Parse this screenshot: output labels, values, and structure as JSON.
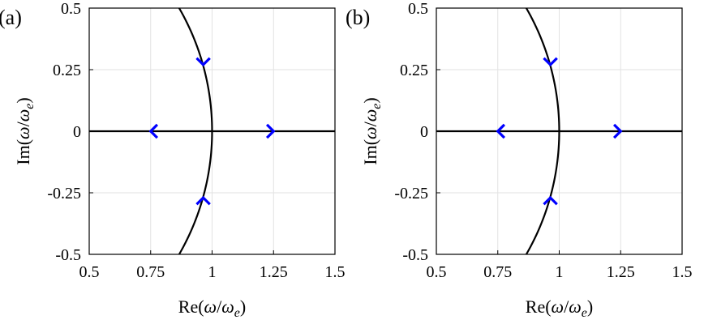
{
  "chart_data": [
    {
      "type": "line",
      "panel_label": "(a)",
      "xlabel": "Re(ω/ω_e)",
      "ylabel": "Im(ω/ω_e)",
      "xlim": [
        0.5,
        1.5
      ],
      "ylim": [
        -0.5,
        0.5
      ],
      "x_ticks": [
        0.5,
        0.75,
        1,
        1.25,
        1.5
      ],
      "x_tick_labels": [
        "0.5",
        "0.75",
        "1",
        "1.25",
        "1.5"
      ],
      "y_ticks": [
        -0.5,
        -0.25,
        0,
        0.25,
        0.5
      ],
      "y_tick_labels": [
        "-0.5",
        "-0.25",
        "0",
        "0.25",
        "0.5"
      ],
      "grid": true,
      "series": [
        {
          "type": "line",
          "color": "#000000",
          "x": [
            0.5,
            1.5
          ],
          "y": [
            0,
            0
          ]
        },
        {
          "type": "line",
          "color": "#000000",
          "x": [
            0.866,
            0.914,
            0.954,
            0.98,
            0.995,
            1.0,
            0.995,
            0.98,
            0.954,
            0.914,
            0.866
          ],
          "y": [
            0.5,
            0.406,
            0.301,
            0.199,
            0.1,
            0,
            -0.1,
            -0.199,
            -0.301,
            -0.406,
            -0.5
          ]
        }
      ],
      "arrows": [
        {
          "x": 0.75,
          "y": 0,
          "direction": "left",
          "color": "#0000ff"
        },
        {
          "x": 1.25,
          "y": 0,
          "direction": "right",
          "color": "#0000ff"
        },
        {
          "x": 0.964,
          "y": 0.27,
          "direction": "down",
          "color": "#0000ff"
        },
        {
          "x": 0.964,
          "y": -0.27,
          "direction": "up",
          "color": "#0000ff"
        }
      ]
    },
    {
      "type": "line",
      "panel_label": "(b)",
      "xlabel": "Re(ω/ω_e)",
      "ylabel": "Im(ω/ω_e)",
      "xlim": [
        0.5,
        1.5
      ],
      "ylim": [
        -0.5,
        0.5
      ],
      "x_ticks": [
        0.5,
        0.75,
        1,
        1.25,
        1.5
      ],
      "x_tick_labels": [
        "0.5",
        "0.75",
        "1",
        "1.25",
        "1.5"
      ],
      "y_ticks": [
        -0.5,
        -0.25,
        0,
        0.25,
        0.5
      ],
      "y_tick_labels": [
        "-0.5",
        "-0.25",
        "0",
        "0.25",
        "0.5"
      ],
      "grid": true,
      "series": [
        {
          "type": "line",
          "color": "#000000",
          "x": [
            0.5,
            1.5
          ],
          "y": [
            0,
            0
          ]
        },
        {
          "type": "line",
          "color": "#000000",
          "x": [
            0.866,
            0.914,
            0.954,
            0.98,
            0.995,
            1.0,
            0.995,
            0.98,
            0.954,
            0.914,
            0.866
          ],
          "y": [
            0.5,
            0.406,
            0.301,
            0.199,
            0.1,
            0,
            -0.1,
            -0.199,
            -0.301,
            -0.406,
            -0.5
          ]
        }
      ],
      "arrows": [
        {
          "x": 0.75,
          "y": 0,
          "direction": "left",
          "color": "#0000ff"
        },
        {
          "x": 1.25,
          "y": 0,
          "direction": "right",
          "color": "#0000ff"
        },
        {
          "x": 0.964,
          "y": 0.27,
          "direction": "down",
          "color": "#0000ff"
        },
        {
          "x": 0.964,
          "y": -0.27,
          "direction": "up",
          "color": "#0000ff"
        }
      ]
    }
  ]
}
